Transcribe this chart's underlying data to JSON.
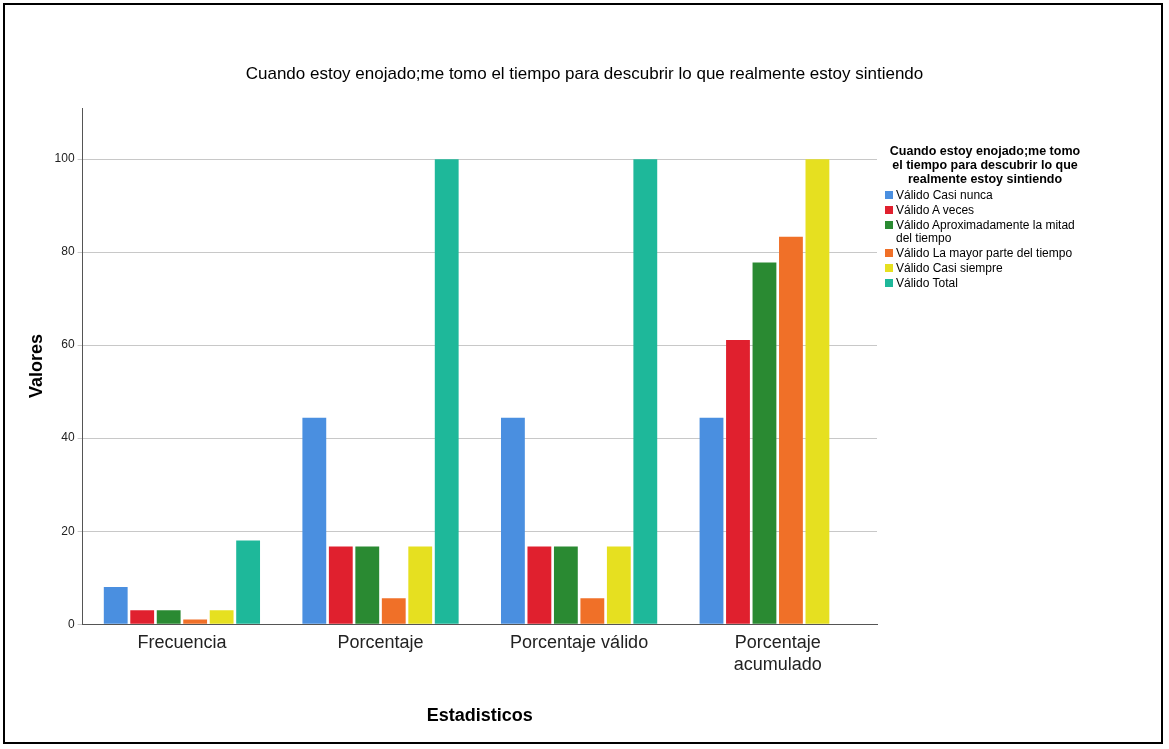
{
  "chart_data": {
    "type": "bar",
    "title": "Cuando estoy enojado;me tomo el tiempo para descubrir lo que realmente estoy sintiendo",
    "xlabel": "Estadisticos",
    "ylabel": "Valores",
    "legend_title": "Cuando estoy enojado;me tomo el tiempo para descubrir lo que realmente estoy sintiendo",
    "categories": [
      "Frecuencia",
      "Porcentaje",
      "Porcentaje válido",
      "Porcentaje acumulado"
    ],
    "series": [
      {
        "name": "Válido Casi nunca",
        "color": "#4a8fe0",
        "values": [
          8,
          44.4,
          44.4,
          44.4
        ]
      },
      {
        "name": "Válido A veces",
        "color": "#e0202e",
        "values": [
          3,
          16.7,
          16.7,
          61.1
        ]
      },
      {
        "name": "Válido Aproximadamente la mitad del tiempo",
        "color": "#2a8a32",
        "values": [
          3,
          16.7,
          16.7,
          77.8
        ]
      },
      {
        "name": "Válido La mayor parte del tiempo",
        "color": "#f07028",
        "values": [
          1,
          5.6,
          5.6,
          83.3
        ]
      },
      {
        "name": "Válido Casi siempre",
        "color": "#e6e020",
        "values": [
          3,
          16.7,
          16.7,
          100
        ]
      },
      {
        "name": "Válido Total",
        "color": "#1eb89a",
        "values": [
          18,
          100,
          100,
          null
        ]
      }
    ],
    "ylim": [
      0,
      111
    ],
    "yticks": [
      0,
      20,
      40,
      60,
      80,
      100
    ],
    "grid": "y",
    "legend": "right"
  }
}
